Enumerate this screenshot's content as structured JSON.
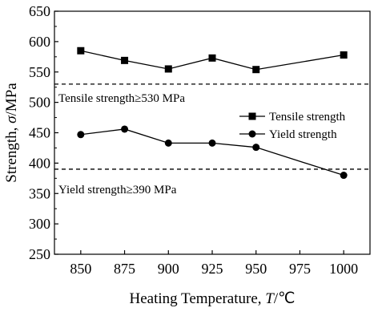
{
  "chart_data": {
    "type": "line",
    "title": "",
    "xlabel_main": "Heating Temperature, ",
    "xlabel_var": "T",
    "xlabel_unit": "/℃",
    "ylabel_main": "Strength, ",
    "ylabel_var": "σ",
    "ylabel_unit": "/MPa",
    "x_ticks": [
      850,
      875,
      900,
      925,
      950,
      975,
      1000
    ],
    "y_ticks": [
      250,
      300,
      350,
      400,
      450,
      500,
      550,
      600,
      650
    ],
    "xlim": [
      835,
      1015
    ],
    "ylim": [
      250,
      650
    ],
    "grid": false,
    "legend_position": "right, middle",
    "series": [
      {
        "name": "Tensile strength",
        "marker": "square",
        "x": [
          850,
          875,
          900,
          925,
          950,
          1000
        ],
        "y": [
          585,
          569,
          555,
          573,
          554,
          578
        ]
      },
      {
        "name": "Yield strength",
        "marker": "circle",
        "x": [
          850,
          875,
          900,
          925,
          950,
          1000
        ],
        "y": [
          447,
          456,
          433,
          433,
          426,
          380
        ]
      }
    ],
    "reference_lines": [
      {
        "y": 530,
        "style": "dashed",
        "label": "Tensile strength≥530 MPa"
      },
      {
        "y": 390,
        "style": "dashed",
        "label": "Yield strength≥390 MPa"
      }
    ]
  }
}
